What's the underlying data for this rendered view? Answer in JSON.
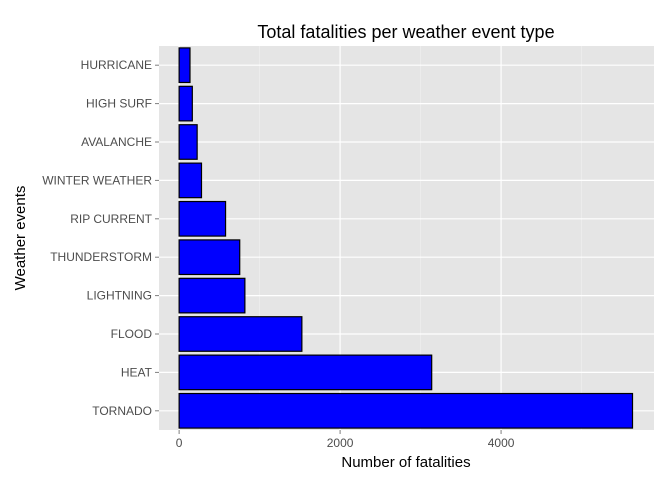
{
  "chart_data": {
    "type": "bar",
    "orientation": "horizontal",
    "title": "Total fatalities per weather event type",
    "xlabel": "Number of fatalities",
    "ylabel": "Weather events",
    "categories": [
      "TORNADO",
      "HEAT",
      "FLOOD",
      "LIGHTNING",
      "THUNDERSTORM",
      "RIP CURRENT",
      "WINTER WEATHER",
      "AVALANCHE",
      "HIGH SURF",
      "HURRICANE"
    ],
    "values": [
      5633,
      3138,
      1525,
      817,
      753,
      577,
      278,
      224,
      164,
      135
    ],
    "xlim": [
      -250,
      5900
    ],
    "xticks": [
      0,
      2000,
      4000
    ],
    "xtick_labels": [
      "0",
      "2000",
      "4000"
    ],
    "grid": true,
    "legend": "none",
    "colors": {
      "bar_fill": "#0000ff",
      "bar_stroke": "#000000",
      "panel_background": "#e5e5e5",
      "grid_line": "#ffffff"
    }
  }
}
